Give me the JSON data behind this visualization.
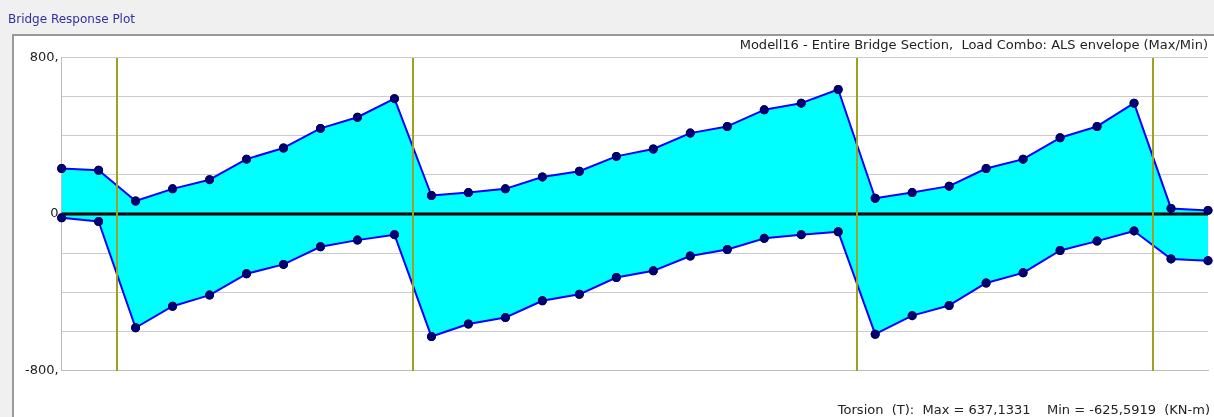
{
  "chart_data": {
    "type": "area",
    "title": "Bridge Response Plot",
    "subtitle": "Modell16 - Entire Bridge Section,  Load Combo: ALS envelope (Max/Min)",
    "annotations": [
      "Torsion  (T):  Max = 637,1331    Min = -625,5919  (KN-m)"
    ],
    "categories": [
      null,
      null,
      null,
      null,
      null,
      null,
      null,
      null,
      null,
      null,
      null,
      null,
      null,
      null,
      null,
      null,
      null,
      null,
      null,
      null,
      null,
      null,
      null,
      null,
      null,
      null,
      null,
      null,
      null,
      null,
      null,
      null
    ],
    "series": [
      {
        "color": "#00ffff",
        "values": [
          233,
          224,
          67,
          129,
          176,
          281,
          338,
          438,
          495,
          590,
          95,
          110,
          129,
          190,
          219,
          295,
          333,
          414,
          448,
          533,
          567,
          637,
          81,
          110,
          143,
          233,
          281,
          390,
          448,
          567,
          29,
          19
        ]
      },
      {
        "color": "#00ffff",
        "values": [
          -19,
          -38,
          -581,
          -471,
          -414,
          -305,
          -257,
          -167,
          -133,
          -105,
          -626,
          -562,
          -529,
          -443,
          -410,
          -324,
          -290,
          -214,
          -181,
          -124,
          -105,
          -90,
          -614,
          -519,
          -467,
          -352,
          -300,
          -186,
          -138,
          -86,
          -229,
          -238
        ]
      }
    ],
    "ylim": [
      -800,
      800
    ],
    "yticks": [
      {
        "value": -800,
        "label": "-800,"
      },
      {
        "value": -600,
        "label": null
      },
      {
        "value": -400,
        "label": null
      },
      {
        "value": -200,
        "label": null
      },
      0,
      {
        "value": 200,
        "label": null
      },
      {
        "value": 400,
        "label": null
      },
      {
        "value": 600,
        "label": null
      },
      {
        "value": 800,
        "label": "800,"
      }
    ],
    "grid": true,
    "marker": "circle",
    "line_style": "solid",
    "ref_lines": [
      {
        "axis": "y",
        "value": 0,
        "color": "#000000"
      }
    ]
  }
}
